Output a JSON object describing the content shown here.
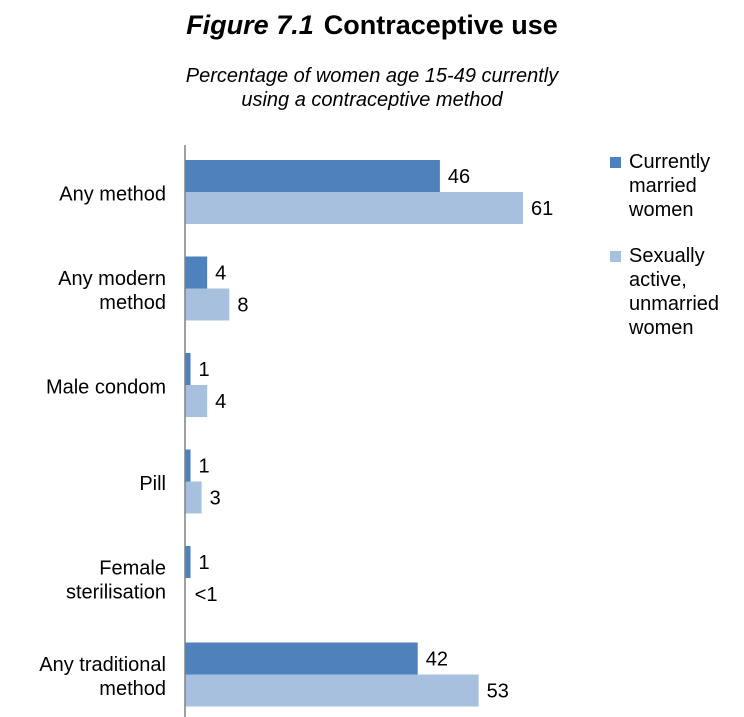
{
  "header": {
    "figure_label": "Figure 7.1",
    "title": "Contraceptive use",
    "subtitle_line1": "Percentage of women age 15-49 currently",
    "subtitle_line2": "using a contraceptive method"
  },
  "colors": {
    "series1": "#4F81BD",
    "series2": "#A7C0DE",
    "axis": "#808080"
  },
  "legend": {
    "items": [
      {
        "lines": [
          "Currently",
          "married",
          "women"
        ]
      },
      {
        "lines": [
          "Sexually",
          "active,",
          "unmarried",
          "women"
        ]
      }
    ]
  },
  "chart_data": {
    "type": "bar",
    "orientation": "horizontal",
    "categories": [
      [
        "Any method"
      ],
      [
        "Any modern",
        "method"
      ],
      [
        "Male condom"
      ],
      [
        "Pill"
      ],
      [
        "Female",
        "sterilisation"
      ],
      [
        "Any traditional",
        "method"
      ]
    ],
    "series": [
      {
        "name": "Currently married women",
        "values": [
          46,
          4,
          1,
          1,
          1,
          42
        ],
        "labels": [
          "46",
          "4",
          "1",
          "1",
          "1",
          "42"
        ]
      },
      {
        "name": "Sexually active, unmarried women",
        "values": [
          61,
          8,
          4,
          3,
          0.3,
          53
        ],
        "labels": [
          "61",
          "8",
          "4",
          "3",
          "<1",
          "53"
        ]
      }
    ],
    "xlim": [
      0,
      70
    ],
    "grid": false,
    "legend_position": "right"
  }
}
